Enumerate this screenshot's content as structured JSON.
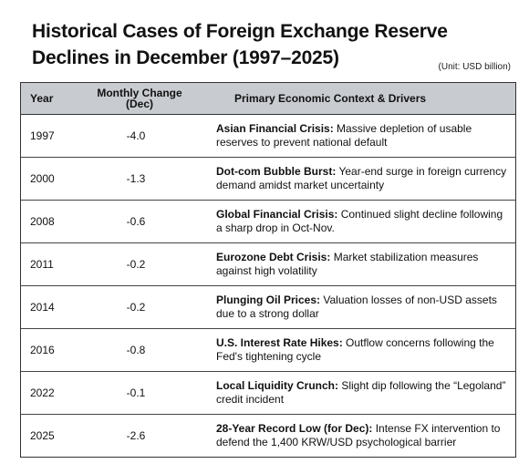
{
  "title_line1": "Historical Cases of Foreign Exchange Reserve",
  "title_line2": "Declines in December (1997–2025)",
  "unit": "(Unit: USD billion)",
  "headers": {
    "year": "Year",
    "change_line1": "Monthly Change",
    "change_line2": "(Dec)",
    "context": "Primary Economic Context & Drivers"
  },
  "rows": [
    {
      "year": "1997",
      "change": "-4.0",
      "lead": "Asian Financial Crisis:",
      "detail": " Massive depletion of usable reserves to prevent national default"
    },
    {
      "year": "2000",
      "change": "-1.3",
      "lead": "Dot-com Bubble Burst:",
      "detail": " Year-end surge in foreign currency demand amidst market uncertainty"
    },
    {
      "year": "2008",
      "change": "-0.6",
      "lead": "Global Financial Crisis:",
      "detail": " Continued slight decline following a sharp drop in Oct-Nov."
    },
    {
      "year": "2011",
      "change": "-0.2",
      "lead": "Eurozone Debt Crisis:",
      "detail": " Market stabilization measures against high volatility"
    },
    {
      "year": "2014",
      "change": "-0.2",
      "lead": "Plunging Oil Prices:",
      "detail": " Valuation losses of non-USD assets due to a strong dollar"
    },
    {
      "year": "2016",
      "change": "-0.8",
      "lead": "U.S. Interest Rate Hikes:",
      "detail": " Outflow concerns following the Fed's tightening cycle"
    },
    {
      "year": "2022",
      "change": "-0.1",
      "lead": "Local Liquidity Crunch:",
      "detail": " Slight dip following the “Legoland” credit incident"
    },
    {
      "year": "2025",
      "change": "-2.6",
      "lead": "28-Year Record Low (for Dec):",
      "detail": " Intense FX intervention to defend the 1,400 KRW/USD psychological barrier"
    }
  ]
}
